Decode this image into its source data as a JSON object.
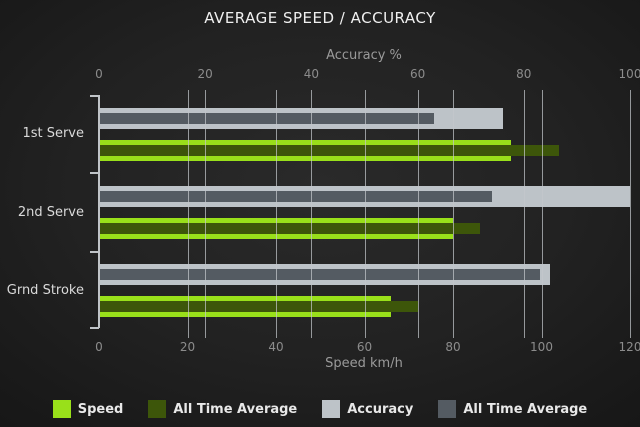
{
  "title": "AVERAGE SPEED / ACCURACY",
  "chart_data": {
    "type": "bar",
    "orientation": "horizontal",
    "categories": [
      "1st Serve",
      "2nd Serve",
      "Grnd Stroke"
    ],
    "axes": {
      "top": {
        "label": "Accuracy %",
        "min": 0,
        "max": 100,
        "ticks": [
          0,
          20,
          40,
          60,
          80,
          100
        ]
      },
      "bottom": {
        "label": "Speed km/h",
        "min": 0,
        "max": 120,
        "ticks": [
          0,
          20,
          40,
          60,
          80,
          100,
          120
        ]
      }
    },
    "series": [
      {
        "name": "Speed",
        "axis": "bottom",
        "color": "#99E01A",
        "values": [
          93,
          80,
          66
        ]
      },
      {
        "name": "All Time Average",
        "axis": "bottom",
        "color": "#3D560A",
        "values": [
          104,
          86,
          72
        ]
      },
      {
        "name": "Accuracy",
        "axis": "top",
        "color": "#BDC3C8",
        "values": [
          76,
          100,
          85
        ]
      },
      {
        "name": "All Time Average",
        "axis": "top",
        "color": "#545B62",
        "values": [
          63,
          74,
          83
        ]
      }
    ],
    "legend": [
      {
        "label": "Speed",
        "color": "#99E01A"
      },
      {
        "label": "All Time Average",
        "color": "#3D560A"
      },
      {
        "label": "Accuracy",
        "color": "#BDC3C8"
      },
      {
        "label": "All Time Average",
        "color": "#545B62"
      }
    ],
    "grid": true,
    "legend_position": "bottom"
  }
}
